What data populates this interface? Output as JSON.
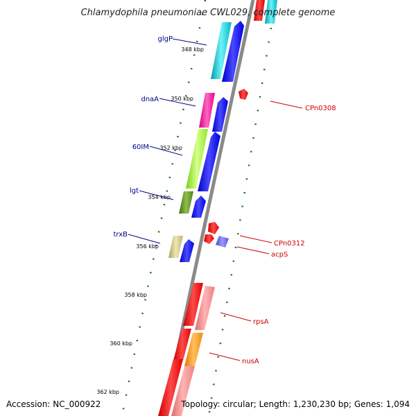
{
  "title": "Chlamydophila pneumoniae CWL029, complete genome",
  "footer": {
    "accession": "Accession: NC_000922",
    "topology": "Topology: circular; Length: 1,230,230 bp; Genes: 1,094"
  },
  "ticks": [
    "348 kbp",
    "350 kbp",
    "352 kbp",
    "354 kbp",
    "356 kbp",
    "358 kbp",
    "360 kbp",
    "362 kbp"
  ],
  "genes_left": [
    "glgP",
    "dnaA",
    "60IM",
    "lgt",
    "trxB"
  ],
  "genes_right": [
    "CPn0308",
    "CPn0312",
    "acpS",
    "rpsA",
    "nusA"
  ],
  "colors": {
    "label_left": "#00008b",
    "label_right": "#cc0000",
    "track_dots": "#117711",
    "backbone": "#8a8a8a",
    "cds": "#0000ee"
  }
}
